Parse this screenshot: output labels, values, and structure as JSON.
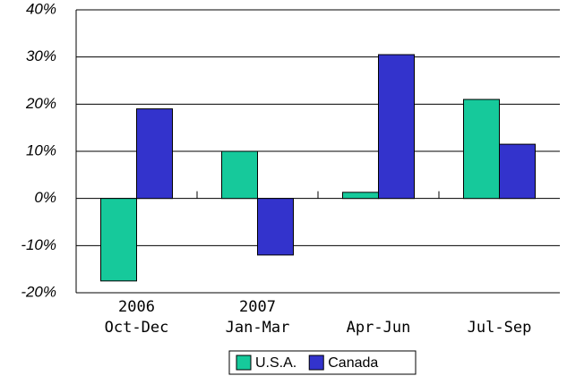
{
  "chart_data": {
    "type": "bar",
    "categories": [
      "Oct-Dec",
      "Jan-Mar",
      "Apr-Jun",
      "Jul-Sep"
    ],
    "category_years": [
      "2006",
      "2007",
      null,
      null
    ],
    "series": [
      {
        "name": "U.S.A.",
        "color": "#16c99b",
        "values": [
          -17.5,
          10,
          1.3,
          21
        ]
      },
      {
        "name": "Canada",
        "color": "#3333cc",
        "values": [
          19,
          -12,
          30.5,
          11.5
        ]
      }
    ],
    "ylim": [
      -20,
      40
    ],
    "yticks": [
      {
        "value": -20,
        "label": "-20%"
      },
      {
        "value": -10,
        "label": "-10%"
      },
      {
        "value": 0,
        "label": "0%"
      },
      {
        "value": 10,
        "label": "10%"
      },
      {
        "value": 20,
        "label": "20%"
      },
      {
        "value": 30,
        "label": "30%"
      },
      {
        "value": 40,
        "label": "40%"
      }
    ],
    "grid": true,
    "legend": "bottom"
  }
}
